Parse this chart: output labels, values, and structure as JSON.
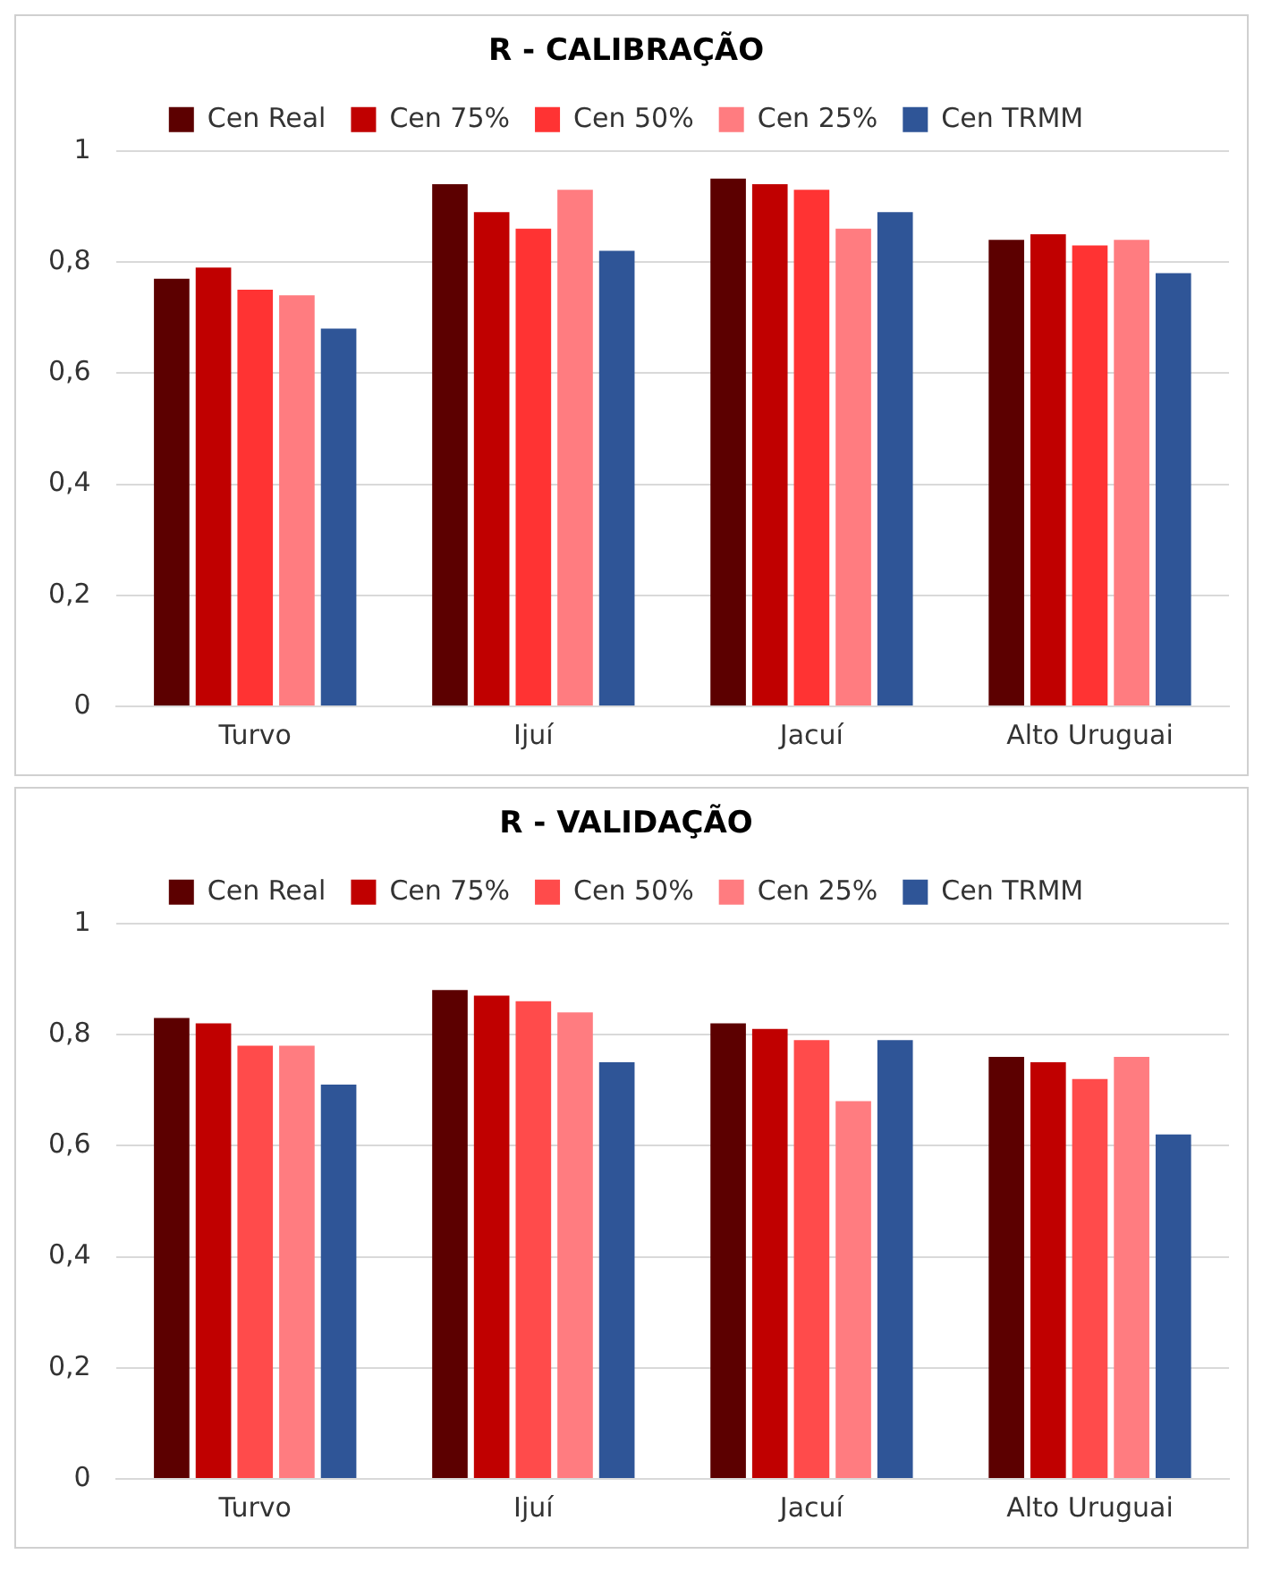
{
  "chart_data": [
    {
      "type": "bar",
      "title": "R - CALIBRAÇÃO",
      "categories": [
        "Turvo",
        "Ijuí",
        "Jacuí",
        "Alto Uruguai"
      ],
      "series": [
        {
          "name": "Cen Real",
          "color": "#5c0000",
          "values": [
            0.77,
            0.94,
            0.95,
            0.84
          ]
        },
        {
          "name": "Cen 75%",
          "color": "#c00000",
          "values": [
            0.79,
            0.89,
            0.94,
            0.85
          ]
        },
        {
          "name": "Cen 50%",
          "color": "#ff3333",
          "values": [
            0.75,
            0.86,
            0.93,
            0.83
          ]
        },
        {
          "name": "Cen 25%",
          "color": "#ff7c80",
          "values": [
            0.74,
            0.93,
            0.86,
            0.84
          ]
        },
        {
          "name": "Cen TRMM",
          "color": "#2f5597",
          "values": [
            0.68,
            0.82,
            0.89,
            0.78
          ]
        }
      ],
      "ylim": [
        0,
        1
      ],
      "yticks": [
        {
          "value": 0,
          "label": "0"
        },
        {
          "value": 0.2,
          "label": "0,2"
        },
        {
          "value": 0.4,
          "label": "0,4"
        },
        {
          "value": 0.6,
          "label": "0,6"
        },
        {
          "value": 0.8,
          "label": "0,8"
        },
        {
          "value": 1,
          "label": "1"
        }
      ],
      "grid": "y",
      "legend": "top"
    },
    {
      "type": "bar",
      "title": "R - VALIDAÇÃO",
      "categories": [
        "Turvo",
        "Ijuí",
        "Jacuí",
        "Alto Uruguai"
      ],
      "series": [
        {
          "name": "Cen Real",
          "color": "#5c0000",
          "values": [
            0.83,
            0.88,
            0.82,
            0.76
          ]
        },
        {
          "name": "Cen 75%",
          "color": "#c00000",
          "values": [
            0.82,
            0.87,
            0.81,
            0.75
          ]
        },
        {
          "name": "Cen 50%",
          "color": "#ff4b4b",
          "values": [
            0.78,
            0.86,
            0.79,
            0.72
          ]
        },
        {
          "name": "Cen 25%",
          "color": "#ff7c80",
          "values": [
            0.78,
            0.84,
            0.68,
            0.76
          ]
        },
        {
          "name": "Cen TRMM",
          "color": "#2f5597",
          "values": [
            0.71,
            0.75,
            0.79,
            0.62
          ]
        }
      ],
      "ylim": [
        0,
        1
      ],
      "yticks": [
        {
          "value": 0,
          "label": "0"
        },
        {
          "value": 0.2,
          "label": "0,2"
        },
        {
          "value": 0.4,
          "label": "0,4"
        },
        {
          "value": 0.6,
          "label": "0,6"
        },
        {
          "value": 0.8,
          "label": "0,8"
        },
        {
          "value": 1,
          "label": "1"
        }
      ],
      "grid": "y",
      "legend": "top"
    }
  ]
}
